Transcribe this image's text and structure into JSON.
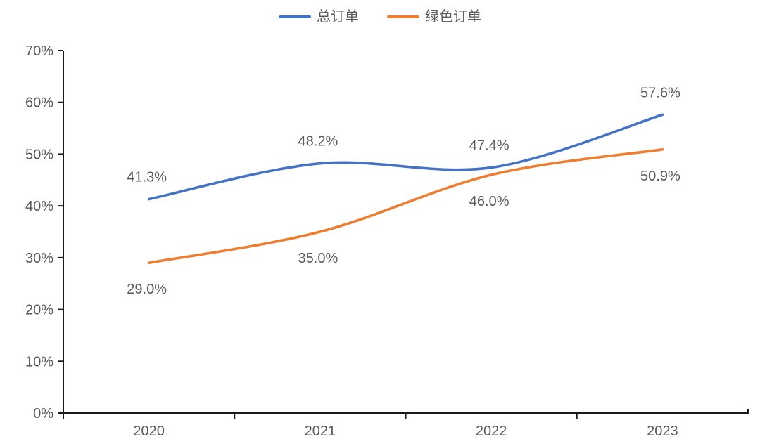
{
  "chart_data": {
    "type": "line",
    "title": "",
    "xlabel": "",
    "ylabel": "",
    "categories": [
      "2020",
      "2021",
      "2022",
      "2023"
    ],
    "series": [
      {
        "name": "总订单",
        "color": "#4472C4",
        "values": [
          41.3,
          48.2,
          47.4,
          57.6
        ],
        "labels": [
          "41.3%",
          "48.2%",
          "47.4%",
          "57.6%"
        ],
        "label_position": "above"
      },
      {
        "name": "绿色订单",
        "color": "#ED7D31",
        "values": [
          29.0,
          35.0,
          46.0,
          50.9
        ],
        "labels": [
          "29.0%",
          "35.0%",
          "46.0%",
          "50.9%"
        ],
        "label_position": "below"
      }
    ],
    "ylim": [
      0,
      70
    ],
    "ytick_step": 10,
    "yticks": [
      "0%",
      "10%",
      "20%",
      "30%",
      "40%",
      "50%",
      "60%",
      "70%"
    ],
    "legend_position": "top-center",
    "grid": false,
    "smooth_lines": true,
    "axis_color": "#1a1a1a",
    "tick_label_color": "#595959",
    "data_label_color": "#595959"
  }
}
